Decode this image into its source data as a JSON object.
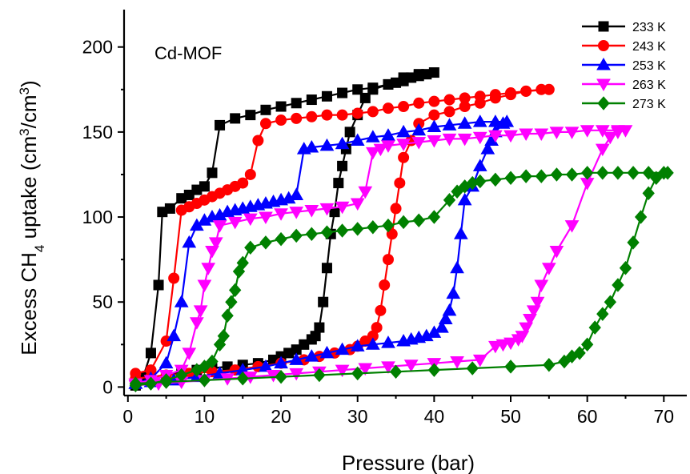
{
  "chart_data": {
    "type": "line",
    "annotation": "Cd-MOF",
    "xlabel": "Pressure (bar)",
    "ylabel": {
      "prefix": "Excess CH",
      "sub": "4",
      "middle": " uptake (cm",
      "sup1": "3",
      "slash": "/cm",
      "sup2": "3",
      "suffix": ")"
    },
    "xlim": [
      -0.5,
      73
    ],
    "ylim": [
      -5,
      222
    ],
    "xticks": [
      0,
      10,
      20,
      30,
      40,
      50,
      60,
      70
    ],
    "yticks": [
      0,
      50,
      100,
      150,
      200
    ],
    "grid": false,
    "legend_position": "top-right",
    "series": [
      {
        "name": "233 K",
        "color": "#000000",
        "marker": "square",
        "x": [
          1,
          2,
          3,
          4,
          4.5,
          5.5,
          7,
          8,
          9,
          10,
          11,
          12,
          14,
          16,
          18,
          20,
          22,
          24,
          26,
          28,
          30,
          32,
          34,
          35,
          36,
          37,
          38,
          39,
          40,
          38,
          36,
          34,
          32,
          31,
          30,
          29,
          28.5,
          28,
          27.5,
          27,
          26.5,
          26,
          25.5,
          25,
          24.5,
          24,
          23,
          22,
          21,
          20,
          19,
          17,
          15,
          13,
          11,
          9,
          7,
          5,
          3,
          1
        ],
        "y": [
          1,
          6,
          20,
          60,
          103,
          105,
          111,
          113,
          116,
          118,
          126,
          154,
          158,
          160,
          163,
          165,
          167,
          169,
          171,
          173,
          175,
          176,
          178,
          179,
          180,
          182,
          183,
          184,
          185,
          184,
          182,
          178,
          175,
          170,
          160,
          150,
          140,
          130,
          120,
          103,
          90,
          70,
          50,
          35,
          30,
          28,
          25,
          22,
          20,
          18,
          16,
          14,
          13,
          12,
          11,
          10,
          9,
          7,
          4,
          1
        ]
      },
      {
        "name": "243 K",
        "color": "#ff0000",
        "marker": "circle",
        "x": [
          1,
          3,
          5,
          6,
          7,
          8,
          9,
          10,
          11,
          12,
          13,
          14,
          15,
          16,
          17,
          18,
          20,
          22,
          24,
          26,
          28,
          30,
          32,
          34,
          36,
          38,
          40,
          42,
          44,
          46,
          48,
          50,
          52,
          54,
          55,
          52,
          50,
          48,
          46,
          44,
          42,
          40,
          38,
          37,
          36,
          35.5,
          35,
          34.5,
          34,
          33.5,
          33,
          32.5,
          32,
          31,
          30,
          29,
          27,
          25,
          23,
          20,
          17,
          14,
          11,
          8,
          5,
          3,
          1
        ],
        "y": [
          8,
          10,
          27,
          64,
          104,
          106,
          108,
          110,
          112,
          114,
          116,
          118,
          120,
          125,
          145,
          155,
          157,
          158,
          159,
          160,
          160,
          161,
          162,
          164,
          165,
          167,
          168,
          169,
          170,
          171,
          172,
          173,
          174,
          175,
          175,
          174,
          172,
          170,
          167,
          165,
          162,
          160,
          155,
          145,
          135,
          120,
          105,
          90,
          75,
          60,
          45,
          35,
          30,
          27,
          24,
          22,
          20,
          18,
          16,
          14,
          12,
          10,
          9,
          8,
          7,
          6,
          5
        ]
      },
      {
        "name": "253 K",
        "color": "#0000ff",
        "marker": "triangle-up",
        "x": [
          1,
          3,
          5,
          6,
          7,
          8,
          9,
          10,
          11,
          12,
          13,
          14,
          15,
          16,
          17,
          18,
          19,
          20,
          21,
          22,
          23,
          24,
          26,
          28,
          30,
          32,
          34,
          36,
          38,
          40,
          42,
          44,
          46,
          48,
          49.5,
          49,
          48,
          47.5,
          47,
          46,
          45,
          44,
          43.5,
          43,
          42.5,
          42,
          41.5,
          41,
          40,
          39,
          38,
          37,
          36,
          34,
          32,
          30,
          28,
          26,
          24,
          22,
          20,
          18,
          15,
          12,
          9,
          6,
          3,
          1
        ],
        "y": [
          2,
          5,
          14,
          30,
          50,
          85,
          95,
          98,
          100,
          101,
          103,
          104,
          105,
          106,
          107,
          108,
          109,
          110,
          111,
          113,
          140,
          141,
          142,
          143,
          145,
          147,
          148,
          150,
          151,
          153,
          154,
          155,
          156,
          156,
          156,
          155,
          150,
          145,
          140,
          130,
          118,
          110,
          90,
          70,
          55,
          45,
          40,
          35,
          32,
          30,
          29,
          28,
          27,
          26,
          25,
          24,
          22,
          20,
          18,
          16,
          14,
          12,
          10,
          8,
          6,
          4,
          3,
          2
        ]
      },
      {
        "name": "263 K",
        "color": "#ff00ff",
        "marker": "triangle-down",
        "x": [
          1,
          3,
          5,
          7,
          8,
          9,
          9.5,
          10,
          10.5,
          11,
          11.5,
          12,
          14,
          16,
          18,
          20,
          22,
          24,
          26,
          28,
          30,
          31,
          32,
          33,
          34,
          36,
          38,
          40,
          42,
          44,
          46,
          48,
          50,
          52,
          54,
          56,
          58,
          60,
          62,
          64,
          65,
          64,
          63,
          62,
          60,
          58,
          56,
          55,
          54,
          53.5,
          53,
          52.5,
          52,
          51.5,
          51,
          50,
          49,
          48,
          46,
          43,
          40,
          37,
          34,
          31,
          28,
          25,
          22,
          19,
          16,
          13,
          10,
          7,
          4,
          1
        ],
        "y": [
          2,
          4,
          7,
          10,
          20,
          38,
          45,
          60,
          70,
          80,
          85,
          95,
          97,
          99,
          100,
          102,
          103,
          104,
          105,
          106,
          108,
          115,
          138,
          140,
          142,
          143,
          144,
          145,
          146,
          146,
          147,
          148,
          148,
          149,
          149,
          150,
          150,
          151,
          151,
          151,
          151,
          150,
          147,
          140,
          120,
          95,
          80,
          70,
          60,
          50,
          45,
          40,
          35,
          30,
          28,
          26,
          25,
          24,
          16,
          15,
          14,
          13,
          12,
          11,
          10,
          9,
          8,
          7,
          6,
          5,
          4,
          3,
          2,
          1
        ]
      },
      {
        "name": "273 K",
        "color": "#008000",
        "marker": "diamond",
        "x": [
          1,
          3,
          5,
          7,
          9,
          10,
          11,
          12,
          12.5,
          13,
          13.5,
          14,
          14.5,
          15,
          16,
          18,
          20,
          22,
          24,
          26,
          28,
          30,
          32,
          34,
          36,
          38,
          40,
          42,
          43,
          44,
          45,
          46,
          48,
          50,
          52,
          54,
          56,
          58,
          60,
          62,
          64,
          66,
          68,
          70,
          70.5,
          69,
          68,
          67,
          66,
          65,
          64,
          63,
          62,
          61,
          60,
          59,
          58,
          57,
          55,
          50,
          45,
          40,
          35,
          30,
          25,
          20,
          15,
          10,
          5,
          1
        ],
        "y": [
          1,
          2,
          4,
          7,
          10,
          12,
          15,
          25,
          30,
          42,
          50,
          57,
          68,
          73,
          82,
          85,
          87,
          89,
          90,
          91,
          92,
          93,
          94,
          95,
          97,
          98,
          100,
          110,
          115,
          118,
          120,
          121,
          122,
          123,
          124,
          124,
          125,
          125,
          126,
          126,
          126,
          126,
          126,
          126,
          126,
          123,
          114,
          100,
          85,
          70,
          60,
          50,
          43,
          35,
          25,
          20,
          18,
          15,
          13,
          12,
          11,
          10,
          9,
          8,
          7,
          6,
          5,
          4,
          3,
          2
        ]
      }
    ]
  }
}
